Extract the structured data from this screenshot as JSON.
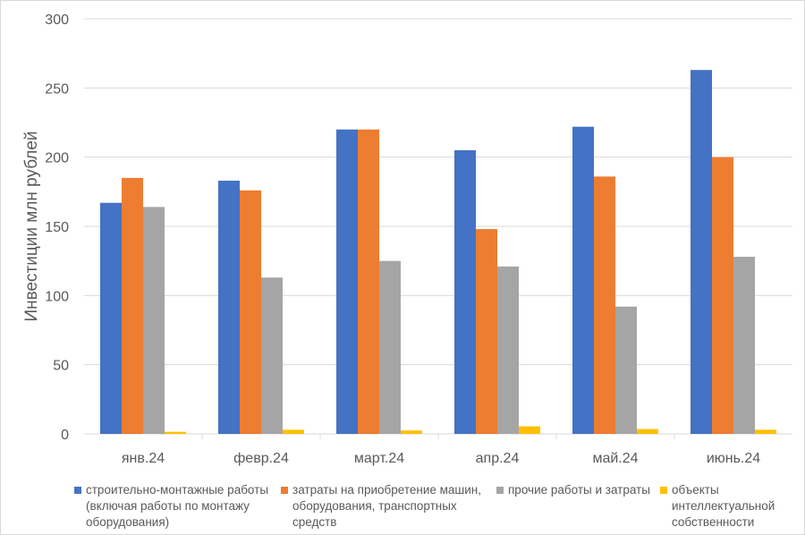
{
  "chart_data": {
    "type": "bar",
    "title": "",
    "xlabel": "",
    "ylabel": "Инвестиции млн рублей",
    "ylim": [
      0,
      300
    ],
    "yticks": [
      0,
      50,
      100,
      150,
      200,
      250,
      300
    ],
    "grid": true,
    "legend_position": "bottom",
    "categories": [
      "янв.24",
      "февр.24",
      "март.24",
      "апр.24",
      "май.24",
      "июнь.24"
    ],
    "series": [
      {
        "name": "строительно-монтажные работы (включая работы по монтажу оборудования)",
        "legend_text": "строительно-монтажные работы\n(включая работы по монтажу\nоборудования)",
        "color": "#4472c4",
        "values": [
          167,
          183,
          220,
          205,
          222,
          263
        ]
      },
      {
        "name": "затраты на приобретение машин, оборудования, транспортных средств",
        "legend_text": "затраты на приобретение машин,\nоборудования, транспортных\nсредств",
        "color": "#ed7d31",
        "values": [
          185,
          176,
          220,
          148,
          186,
          200
        ]
      },
      {
        "name": "прочие работы и затраты",
        "legend_text": "прочие работы и затраты",
        "color": "#a5a5a5",
        "values": [
          164,
          113,
          125,
          121,
          92,
          128
        ]
      },
      {
        "name": "объекты интеллектуальной собственности",
        "legend_text": "объекты\nинтеллектуальной\nсобственности",
        "color": "#ffc000",
        "values": [
          1.5,
          3,
          2.5,
          5.5,
          3.5,
          3
        ]
      }
    ]
  }
}
